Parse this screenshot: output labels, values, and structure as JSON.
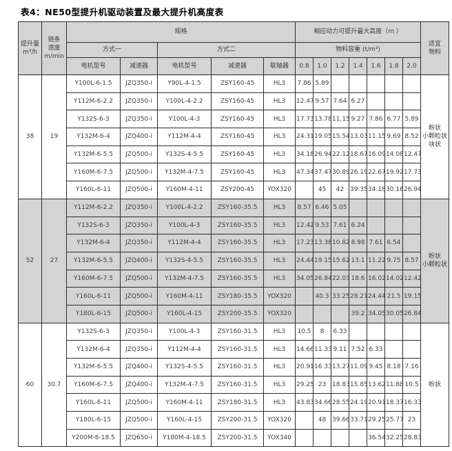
{
  "title": "表4：NE50型提升机驱动装置及最大提升机高度表",
  "colors": {
    "header_bg": "#d4d4d4",
    "shaded_group_bg": "#d4d4d4",
    "border": "#2b2b2b",
    "text": "#3f3f3f"
  },
  "table": {
    "header": {
      "capacity": "提升量\nm³/h",
      "speed": "链条\n速度\nm/min",
      "spec": "规格",
      "max_height": "相应动力可提升最大高度（m ）",
      "suitable": "适宜\n物料",
      "method1": "方式一",
      "method2": "方式二",
      "density": "物料容重 (t/m³)",
      "motor_model": "电机型号",
      "reducer": "减速器",
      "coupling": "联轴器",
      "densities": [
        "0.8",
        "1.0",
        "1.2",
        "1.4",
        "1.6",
        "1.8",
        "2.0"
      ]
    },
    "groups": [
      {
        "capacity": "38",
        "speed": "19",
        "material": "粉状\n小颗粒状\n块状",
        "shaded": false,
        "rows": [
          {
            "motor1": "Y100L-6-1.5",
            "reducer1": "JZQ350-i",
            "motor2": "Y90L-4-1.5",
            "reducer2": "ZSY160-45",
            "coupling": "HL3",
            "heights": [
              "7.86",
              "5.89",
              "",
              "",
              "",
              "",
              ""
            ]
          },
          {
            "motor1": "Y112M-6-2.2",
            "reducer1": "JZQ350-i",
            "motor2": "Y100L-4-2.2",
            "reducer2": "ZSY160-45",
            "coupling": "HL3",
            "heights": [
              "12.47",
              "9.57",
              "7.64",
              "6.27",
              "",
              "",
              ""
            ]
          },
          {
            "motor1": "Y132S-6-3",
            "reducer1": "JZQ350-i",
            "motor2": "Y100L-4-3",
            "reducer2": "ZSY160-45",
            "coupling": "HL3",
            "heights": [
              "17.73",
              "13.78",
              "11.15",
              "9.27",
              "7.86",
              "6.77",
              "5.89"
            ]
          },
          {
            "motor1": "Y132M-6-4",
            "reducer1": "JZQ400-i",
            "motor2": "Y112M-4-4",
            "reducer2": "ZSY160-45",
            "coupling": "HL3",
            "heights": [
              "24.31",
              "19.05",
              "15.54",
              "13.03",
              "11.15",
              "9.69",
              "8.52"
            ]
          },
          {
            "motor1": "Y132M-6-5.5",
            "reducer1": "JZQ500-i",
            "motor2": "Y132S-4-5.5",
            "reducer2": "ZSY160-45",
            "coupling": "HL3",
            "heights": [
              "34.18",
              "26.94",
              "22.12",
              "18.67",
              "16.09",
              "14.08",
              "12.47"
            ]
          },
          {
            "motor1": "Y160M-6-7.5",
            "reducer1": "JZQ500-i",
            "motor2": "Y132M-4-7.5",
            "reducer2": "ZSY160-45",
            "coupling": "HL3",
            "heights": [
              "47.34",
              "37.47",
              "30.89",
              "26.19",
              "22.67",
              "19.92",
              "17.73"
            ]
          },
          {
            "motor1": "Y160L-6-11",
            "reducer1": "JZQ500-i",
            "motor2": "Y160M-4-11",
            "reducer2": "ZSY200-45",
            "coupling": "YOX320",
            "heights": [
              "",
              "45",
              "42",
              "39.35",
              "34.18",
              "30.16",
              "26.94"
            ]
          }
        ]
      },
      {
        "capacity": "52",
        "speed": "27",
        "material": "粉状\n小颗粒状",
        "shaded": true,
        "rows": [
          {
            "motor1": "Y112M-6-2.2",
            "reducer1": "JZQ350-i",
            "motor2": "Y100L-4-2.2",
            "reducer2": "ZSY160-35.5",
            "coupling": "HL3",
            "heights": [
              "8.57",
              "6.46",
              "5.05",
              "",
              "",
              "",
              ""
            ]
          },
          {
            "motor1": "Y132S-6-3",
            "reducer1": "JZQ350-i",
            "motor2": "Y100L-4-3",
            "reducer2": "ZSY160-35.5",
            "coupling": "HL3",
            "heights": [
              "12.42",
              "9.53",
              "7.61",
              "6.24",
              "",
              "",
              ""
            ]
          },
          {
            "motor1": "Y132M-6-4",
            "reducer1": "JZQ350-i",
            "motor2": "Y112M-4-4",
            "reducer2": "ZSY160-35.5",
            "coupling": "HL3",
            "heights": [
              "17.23",
              "13.38",
              "10.82",
              "8.98",
              "7.61",
              "6.54",
              ""
            ]
          },
          {
            "motor1": "Y132M-6-5.5",
            "reducer1": "JZQ400-i",
            "motor2": "Y132S-4-5.5",
            "reducer2": "ZSY160-35.5",
            "coupling": "HL3",
            "heights": [
              "24.44",
              "19.15",
              "15.62",
              "13.1",
              "11.22",
              "9.75",
              "8.57"
            ]
          },
          {
            "motor1": "Y160M-6-7.5",
            "reducer1": "JZQ500-i",
            "motor2": "Y132M-4-7.5",
            "reducer2": "ZSY160-35.5",
            "coupling": "HL3",
            "heights": [
              "34.05",
              "26.84",
              "22.03",
              "18.6",
              "16.02",
              "14.02",
              "12.42"
            ]
          },
          {
            "motor1": "Y160L-6-11",
            "reducer1": "JZQ500-i",
            "motor2": "Y160M-4-11",
            "reducer2": "ZSY180-35.5",
            "coupling": "YOX320",
            "heights": [
              "",
              "40.3",
              "33.25",
              "28.21",
              "24.44",
              "21.5",
              "19.15"
            ]
          },
          {
            "motor1": "Y180L-6-15",
            "reducer1": "JZQ500-i",
            "motor2": "Y160L-4-15",
            "reducer2": "ZSY200-35.5",
            "coupling": "YOX320",
            "heights": [
              "",
              "",
              "",
              "39.2",
              "34.05",
              "30.05",
              "26.84"
            ]
          }
        ]
      },
      {
        "capacity": "60",
        "speed": "30.7",
        "material": "粉状",
        "shaded": false,
        "rows": [
          {
            "motor1": "Y132S-6-3",
            "reducer1": "JZQ350-i",
            "motor2": "Y100L-4-3",
            "reducer2": "ZSY160-31.5",
            "coupling": "HL3",
            "heights": [
              "10.5",
              "8",
              "6.33",
              "",
              "",
              "",
              ""
            ]
          },
          {
            "motor1": "Y132M-6-4",
            "reducer1": "JZQ350-i",
            "motor2": "Y112M-4-4",
            "reducer2": "ZSY160-31.5",
            "coupling": "HL3",
            "heights": [
              "14.66",
              "11.33",
              "9.11",
              "7.52",
              "6.33",
              "",
              ""
            ]
          },
          {
            "motor1": "Y132M-6-5.5",
            "reducer1": "JZQ400-i",
            "motor2": "Y132S-4-5.5",
            "reducer2": "ZSY160-31.5",
            "coupling": "HL3",
            "heights": [
              "20.91",
              "16.33",
              "13.27",
              "11.09",
              "9.45",
              "8.18",
              "7.16"
            ]
          },
          {
            "motor1": "Y160M-6-7.5",
            "reducer1": "JZQ400-i",
            "motor2": "Y132M-4-7.5",
            "reducer2": "ZSY160-31.5",
            "coupling": "HL3",
            "heights": [
              "29.25",
              "23",
              "18.83",
              "15.85",
              "13.62",
              "11.88",
              "10.5"
            ]
          },
          {
            "motor1": "Y160L-6-11",
            "reducer1": "JZQ500-i",
            "motor2": "Y160M-4-11",
            "reducer2": "ZSY180-31.5",
            "coupling": "HL3",
            "heights": [
              "43.83",
              "34.66",
              "28.55",
              "24.19",
              "20.91",
              "18.37",
              "16.33"
            ]
          },
          {
            "motor1": "Y180L-6-15",
            "reducer1": "JZQ500-i",
            "motor2": "Y160L-4-15",
            "reducer2": "ZSY200-31.5",
            "coupling": "YOX320",
            "heights": [
              "",
              "48",
              "39.66",
              "33.71",
              "29.25",
              "25.77",
              "23"
            ]
          },
          {
            "motor1": "Y200M-6-18.5",
            "reducer1": "JZQ650-i",
            "motor2": "Y180M-4-18.5",
            "reducer2": "ZSY200-31.5",
            "coupling": "YOX340",
            "heights": [
              "",
              "",
              "",
              "",
              "36.54",
              "32.25",
              "28.83"
            ]
          }
        ]
      }
    ]
  }
}
